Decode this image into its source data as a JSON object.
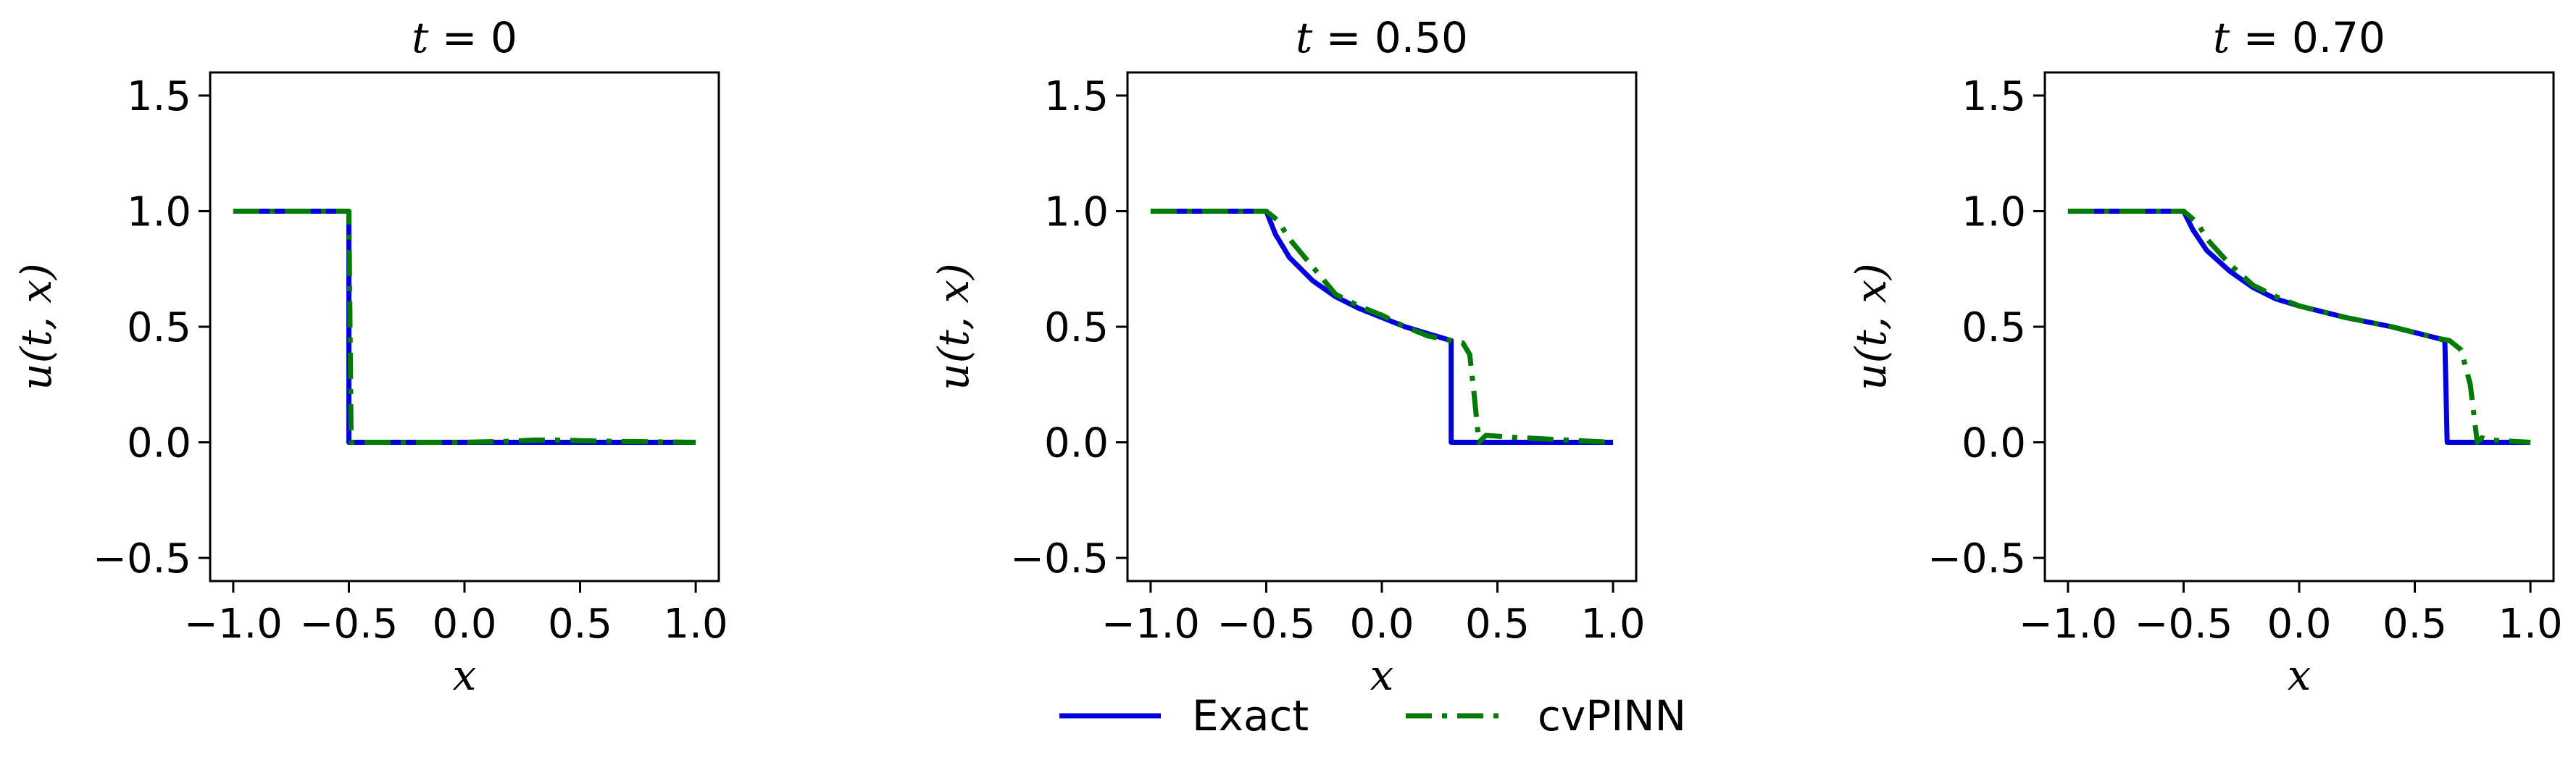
{
  "colors": {
    "exact": "#0000dd",
    "cvpinn": "#007a00",
    "axes": "#000000",
    "background": "#ffffff"
  },
  "legend": {
    "exact_label": "Exact",
    "cvpinn_label": "cvPINN",
    "placement": "bottom-center"
  },
  "chart_data": [
    {
      "type": "line",
      "title": "t = 0",
      "xlabel": "x",
      "ylabel": "u(t, x)",
      "xlim": [
        -1.1,
        1.1
      ],
      "ylim": [
        -0.6,
        1.6
      ],
      "xticks": [
        -1.0,
        -0.5,
        0.0,
        0.5,
        1.0
      ],
      "xtick_labels": [
        "−1.0",
        "−0.5",
        "0.0",
        "0.5",
        "1.0"
      ],
      "yticks": [
        -0.5,
        0.0,
        0.5,
        1.0,
        1.5
      ],
      "ytick_labels": [
        "−0.5",
        "0.0",
        "0.5",
        "1.0",
        "1.5"
      ],
      "series": [
        {
          "name": "Exact",
          "style": "solid",
          "x": [
            -1.0,
            -0.5,
            -0.5,
            1.0
          ],
          "y": [
            1.0,
            1.0,
            0.0,
            0.0
          ]
        },
        {
          "name": "cvPINN",
          "style": "dashdot",
          "x": [
            -1.0,
            -0.5,
            -0.49,
            0.0,
            0.2,
            0.3,
            0.4,
            0.6,
            1.0
          ],
          "y": [
            1.0,
            1.0,
            0.0,
            0.0,
            0.005,
            0.01,
            0.01,
            0.005,
            0.0
          ]
        }
      ]
    },
    {
      "type": "line",
      "title": "t = 0.50",
      "xlabel": "x",
      "ylabel": "u(t, x)",
      "xlim": [
        -1.1,
        1.1
      ],
      "ylim": [
        -0.6,
        1.6
      ],
      "xticks": [
        -1.0,
        -0.5,
        0.0,
        0.5,
        1.0
      ],
      "xtick_labels": [
        "−1.0",
        "−0.5",
        "0.0",
        "0.5",
        "1.0"
      ],
      "yticks": [
        -0.5,
        0.0,
        0.5,
        1.0,
        1.5
      ],
      "ytick_labels": [
        "−0.5",
        "0.0",
        "0.5",
        "1.0",
        "1.5"
      ],
      "series": [
        {
          "name": "Exact",
          "style": "solid",
          "x": [
            -1.0,
            -0.5,
            -0.46,
            -0.4,
            -0.3,
            -0.2,
            -0.1,
            0.0,
            0.1,
            0.2,
            0.3,
            0.3,
            1.0
          ],
          "y": [
            1.0,
            1.0,
            0.9,
            0.8,
            0.7,
            0.63,
            0.58,
            0.54,
            0.5,
            0.47,
            0.44,
            0.0,
            0.0
          ]
        },
        {
          "name": "cvPINN",
          "style": "dashdot",
          "x": [
            -1.0,
            -0.5,
            -0.45,
            -0.4,
            -0.3,
            -0.2,
            -0.1,
            0.0,
            0.1,
            0.2,
            0.3,
            0.35,
            0.38,
            0.4,
            0.42,
            0.45,
            0.6,
            0.8,
            1.0
          ],
          "y": [
            1.0,
            1.0,
            0.96,
            0.88,
            0.76,
            0.64,
            0.59,
            0.55,
            0.5,
            0.46,
            0.44,
            0.43,
            0.38,
            0.2,
            0.0,
            0.03,
            0.02,
            0.01,
            0.0
          ]
        }
      ]
    },
    {
      "type": "line",
      "title": "t = 0.70",
      "xlabel": "x",
      "ylabel": "u(t, x)",
      "xlim": [
        -1.1,
        1.1
      ],
      "ylim": [
        -0.6,
        1.6
      ],
      "xticks": [
        -1.0,
        -0.5,
        0.0,
        0.5,
        1.0
      ],
      "xtick_labels": [
        "−1.0",
        "−0.5",
        "0.0",
        "0.5",
        "1.0"
      ],
      "yticks": [
        -0.5,
        0.0,
        0.5,
        1.0,
        1.5
      ],
      "ytick_labels": [
        "−0.5",
        "0.0",
        "0.5",
        "1.0",
        "1.5"
      ],
      "series": [
        {
          "name": "Exact",
          "style": "solid",
          "x": [
            -1.0,
            -0.5,
            -0.46,
            -0.4,
            -0.3,
            -0.2,
            -0.1,
            0.0,
            0.2,
            0.4,
            0.6,
            0.63,
            0.64,
            1.0
          ],
          "y": [
            1.0,
            1.0,
            0.92,
            0.83,
            0.74,
            0.67,
            0.62,
            0.59,
            0.54,
            0.5,
            0.45,
            0.44,
            0.0,
            0.0
          ]
        },
        {
          "name": "cvPINN",
          "style": "dashdot",
          "x": [
            -1.0,
            -0.5,
            -0.44,
            -0.4,
            -0.3,
            -0.2,
            -0.1,
            0.0,
            0.2,
            0.4,
            0.6,
            0.65,
            0.7,
            0.74,
            0.77,
            0.79,
            0.82,
            1.0
          ],
          "y": [
            1.0,
            1.0,
            0.95,
            0.88,
            0.77,
            0.68,
            0.63,
            0.59,
            0.54,
            0.5,
            0.45,
            0.44,
            0.4,
            0.25,
            0.0,
            0.02,
            0.01,
            0.0
          ]
        }
      ]
    }
  ]
}
